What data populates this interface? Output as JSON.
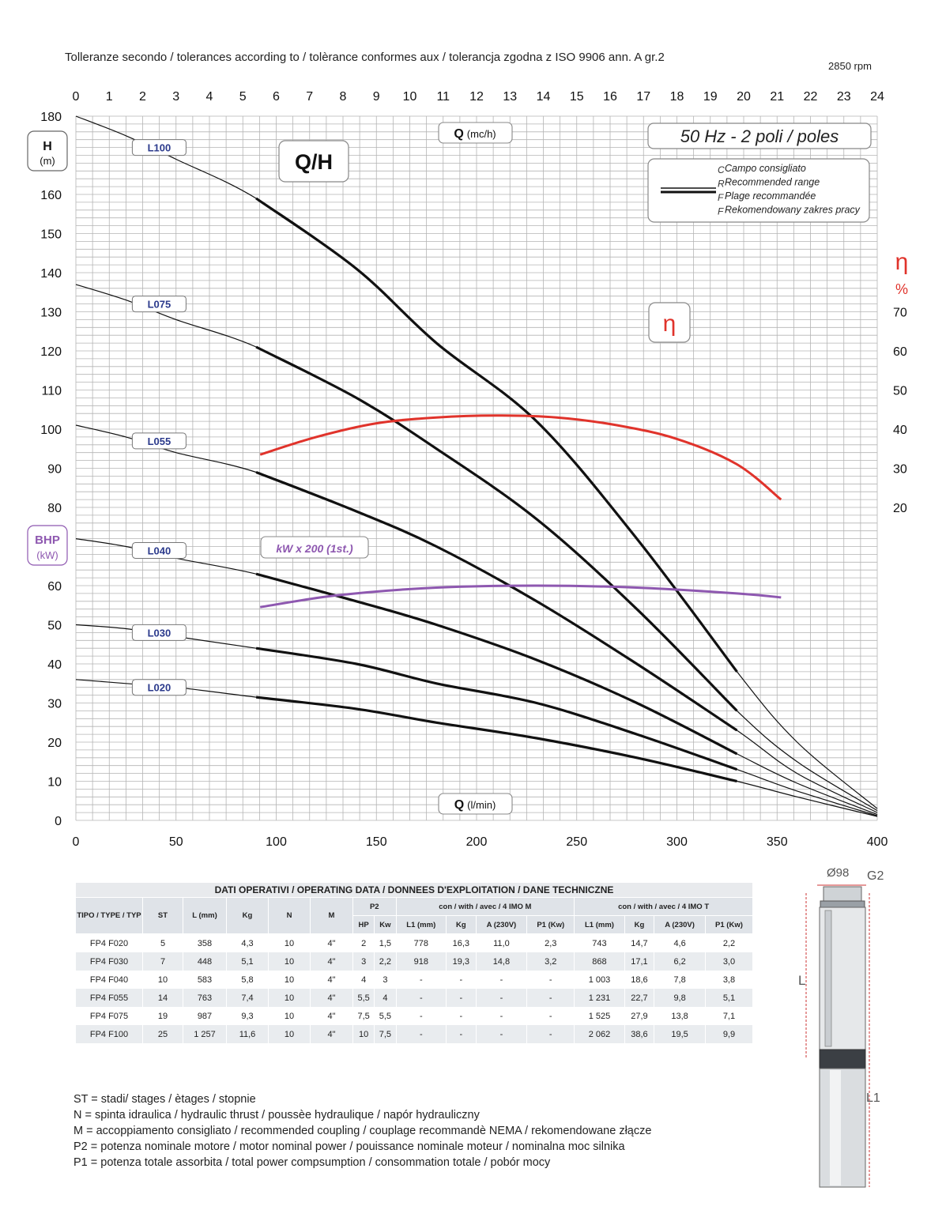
{
  "header": {
    "tolerance_note": "Tolleranze secondo / tolerances according to / tolèrance conformes aux / tolerancja zgodna z ISO 9906 ann. A gr.2",
    "rpm": "2850 rpm"
  },
  "chart_data": {
    "type": "line",
    "title": "Q/H",
    "frequency_label": "50 Hz - 2 poli / poles",
    "x_top_label": "Q",
    "x_top_unit": "(mc/h)",
    "x_bottom_label": "Q",
    "x_bottom_unit": "(l/min)",
    "y_left_label": "H",
    "y_left_unit": "(m)",
    "y_power_label": "BHP",
    "y_power_unit": "(kW)",
    "y_right_label": "η",
    "y_right_unit": "%",
    "eta_box_label": "η",
    "kw_label": "kW x 200 (1st.)",
    "legend_lines": [
      "Campo consigliato",
      "Recommended range",
      "Plage recommandée",
      "Rekomendowany zakres pracy"
    ],
    "legend_prefixes": [
      "C",
      "R",
      "F",
      "F"
    ],
    "xlim_lmin": [
      0,
      400
    ],
    "xlim_m3h": [
      0,
      24
    ],
    "ylim": [
      0,
      180
    ],
    "eta_lim": [
      20,
      70
    ],
    "x_bottom_ticks": [
      0,
      50,
      100,
      150,
      200,
      250,
      300,
      350,
      400
    ],
    "x_top_ticks": [
      0,
      1,
      2,
      3,
      4,
      5,
      6,
      7,
      8,
      9,
      10,
      11,
      12,
      13,
      14,
      15,
      16,
      17,
      18,
      19,
      20,
      21,
      22,
      23,
      24
    ],
    "y_ticks": [
      0,
      10,
      20,
      30,
      40,
      50,
      60,
      70,
      80,
      90,
      100,
      110,
      120,
      130,
      140,
      150,
      160,
      170,
      180
    ],
    "eta_ticks": [
      20,
      30,
      40,
      50,
      60,
      70
    ],
    "grid": true,
    "recommended_range_lmin": [
      90,
      330
    ],
    "series": [
      {
        "name": "L100",
        "label_at": [
          40,
          172
        ],
        "points": [
          [
            0,
            180
          ],
          [
            25,
            175
          ],
          [
            50,
            169
          ],
          [
            90,
            159
          ],
          [
            140,
            141
          ],
          [
            180,
            122
          ],
          [
            230,
            102
          ],
          [
            280,
            72
          ],
          [
            330,
            38
          ],
          [
            360,
            20
          ],
          [
            400,
            3
          ]
        ]
      },
      {
        "name": "L075",
        "label_at": [
          40,
          132
        ],
        "points": [
          [
            0,
            137
          ],
          [
            25,
            133
          ],
          [
            50,
            128
          ],
          [
            90,
            121
          ],
          [
            140,
            108
          ],
          [
            180,
            95
          ],
          [
            230,
            77
          ],
          [
            280,
            54
          ],
          [
            330,
            28
          ],
          [
            360,
            15
          ],
          [
            400,
            2.5
          ]
        ]
      },
      {
        "name": "L055",
        "label_at": [
          40,
          97
        ],
        "points": [
          [
            0,
            101
          ],
          [
            25,
            98
          ],
          [
            50,
            94
          ],
          [
            90,
            89
          ],
          [
            140,
            79
          ],
          [
            180,
            70
          ],
          [
            230,
            56
          ],
          [
            280,
            40
          ],
          [
            330,
            23
          ],
          [
            360,
            12
          ],
          [
            400,
            2
          ]
        ]
      },
      {
        "name": "L040",
        "label_at": [
          40,
          69
        ],
        "points": [
          [
            0,
            72
          ],
          [
            25,
            70
          ],
          [
            50,
            67
          ],
          [
            90,
            63
          ],
          [
            140,
            56
          ],
          [
            180,
            50
          ],
          [
            230,
            41
          ],
          [
            280,
            30
          ],
          [
            330,
            17
          ],
          [
            360,
            9.5
          ],
          [
            400,
            1.5
          ]
        ]
      },
      {
        "name": "L030",
        "label_at": [
          40,
          48
        ],
        "points": [
          [
            0,
            50
          ],
          [
            25,
            49
          ],
          [
            50,
            47
          ],
          [
            90,
            44
          ],
          [
            140,
            40
          ],
          [
            180,
            35
          ],
          [
            230,
            30
          ],
          [
            280,
            22
          ],
          [
            330,
            13
          ],
          [
            360,
            7.5
          ],
          [
            400,
            1.2
          ]
        ]
      },
      {
        "name": "L020",
        "label_at": [
          40,
          34
        ],
        "points": [
          [
            0,
            36
          ],
          [
            25,
            35
          ],
          [
            50,
            34
          ],
          [
            90,
            31.5
          ],
          [
            140,
            28.5
          ],
          [
            180,
            25
          ],
          [
            230,
            21
          ],
          [
            280,
            16
          ],
          [
            330,
            10
          ],
          [
            360,
            6
          ],
          [
            400,
            1
          ]
        ]
      }
    ],
    "efficiency_percent": [
      [
        92,
        33.5
      ],
      [
        120,
        38
      ],
      [
        150,
        41.5
      ],
      [
        180,
        43
      ],
      [
        210,
        43.5
      ],
      [
        240,
        43
      ],
      [
        270,
        41
      ],
      [
        300,
        37.5
      ],
      [
        330,
        31
      ],
      [
        352,
        22
      ]
    ],
    "power_kw_x200": [
      [
        92,
        54.5
      ],
      [
        130,
        57.5
      ],
      [
        180,
        59.5
      ],
      [
        230,
        60
      ],
      [
        280,
        59.5
      ],
      [
        330,
        58
      ],
      [
        352,
        57
      ]
    ]
  },
  "table": {
    "title": "DATI OPERATIVI / OPERATING DATA / DONNEES D'EXPLOITATION / DANE TECHNICZNE",
    "headers": {
      "tipo": "TIPO / TYPE / TYP",
      "st": "ST",
      "l": "L (mm)",
      "kg": "Kg",
      "n": "N",
      "m": "M",
      "p2": "P2",
      "hp": "HP",
      "kw": "Kw",
      "group_m": "con / with / avec / 4 IMO M",
      "group_t": "con / with / avec / 4 IMO T",
      "l1": "L1 (mm)",
      "kg2": "Kg",
      "a": "A (230V)",
      "p1": "P1 (Kw)"
    },
    "rows": [
      [
        "FP4 F020",
        "5",
        "358",
        "4,3",
        "10",
        "4\"",
        "2",
        "1,5",
        "778",
        "16,3",
        "11,0",
        "2,3",
        "743",
        "14,7",
        "4,6",
        "2,2"
      ],
      [
        "FP4 F030",
        "7",
        "448",
        "5,1",
        "10",
        "4\"",
        "3",
        "2,2",
        "918",
        "19,3",
        "14,8",
        "3,2",
        "868",
        "17,1",
        "6,2",
        "3,0"
      ],
      [
        "FP4 F040",
        "10",
        "583",
        "5,8",
        "10",
        "4\"",
        "4",
        "3",
        "-",
        "-",
        "-",
        "-",
        "1 003",
        "18,6",
        "7,8",
        "3,8"
      ],
      [
        "FP4 F055",
        "14",
        "763",
        "7,4",
        "10",
        "4\"",
        "5,5",
        "4",
        "-",
        "-",
        "-",
        "-",
        "1 231",
        "22,7",
        "9,8",
        "5,1"
      ],
      [
        "FP4 F075",
        "19",
        "987",
        "9,3",
        "10",
        "4\"",
        "7,5",
        "5,5",
        "-",
        "-",
        "-",
        "-",
        "1 525",
        "27,9",
        "13,8",
        "7,1"
      ],
      [
        "FP4 F100",
        "25",
        "1 257",
        "11,6",
        "10",
        "4\"",
        "10",
        "7,5",
        "-",
        "-",
        "-",
        "-",
        "2 062",
        "38,6",
        "19,5",
        "9,9"
      ]
    ]
  },
  "notes": [
    "ST = stadi/ stages / ètages / stopnie",
    "N  = spinta idraulica / hydraulic thrust / poussèe hydraulique / napór hydrauliczny",
    "M  = accoppiamento consigliato / recommended coupling / couplage recommandè     NEMA / rekomendowane złącze",
    "P2 = potenza nominale motore / motor nominal power / pouissance nominale moteur / nominalna moc silnika",
    "P1 = potenza totale assorbita / total power compsumption / consommation totale / pobór mocy"
  ],
  "pump": {
    "diameter": "Ø98",
    "thread": "G2",
    "length": "L",
    "length1": "L1"
  },
  "colors": {
    "curve": "#111111",
    "efficiency": "#e0332b",
    "power": "#8e58b0",
    "grid": "#b4b4b4",
    "series_label": "#2b3a8c"
  }
}
